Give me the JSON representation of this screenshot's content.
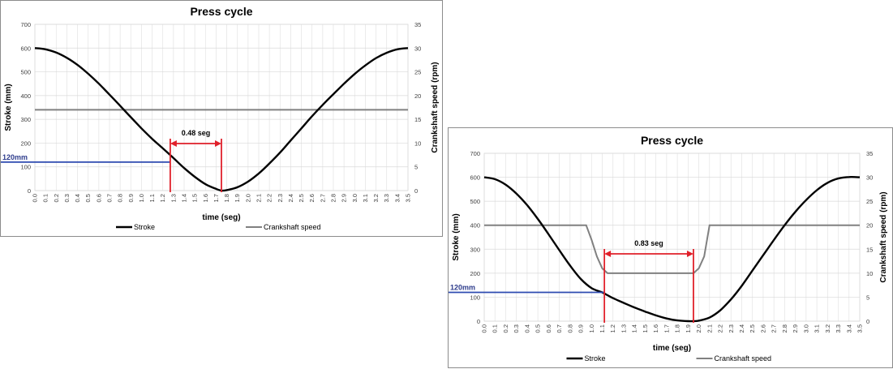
{
  "chart_data": [
    {
      "type": "line",
      "title": "Press cycle",
      "xlabel": "time (seg)",
      "ylabel": "Stroke  (mm)",
      "y2label": "Crankshaft speed (rpm)",
      "xlim": [
        0,
        3.5
      ],
      "ylim": [
        0,
        700
      ],
      "y2lim": [
        0,
        35
      ],
      "x_ticks": [
        "0.0",
        "0.1",
        "0.2",
        "0.3",
        "0.4",
        "0.5",
        "0.6",
        "0.7",
        "0.8",
        "0.9",
        "1.0",
        "1.1",
        "1.2",
        "1.3",
        "1.4",
        "1.5",
        "1.6",
        "1.7",
        "1.8",
        "1.9",
        "2.0",
        "2.1",
        "2.2",
        "2.3",
        "2.4",
        "2.5",
        "2.6",
        "2.7",
        "2.8",
        "2.9",
        "3.0",
        "3.1",
        "3.2",
        "3.3",
        "3.4",
        "3.5"
      ],
      "y_ticks": [
        "0",
        "100",
        "200",
        "300",
        "400",
        "500",
        "600",
        "700"
      ],
      "y2_ticks": [
        "0",
        "5",
        "10",
        "15",
        "20",
        "25",
        "30",
        "35"
      ],
      "grid": true,
      "legend_position": "bottom",
      "series": [
        {
          "name": "Stroke",
          "axis": "left",
          "color": "#000000",
          "x": [
            0,
            0.1,
            0.2,
            0.3,
            0.4,
            0.5,
            0.6,
            0.7,
            0.8,
            0.9,
            1.0,
            1.1,
            1.2,
            1.3,
            1.4,
            1.5,
            1.6,
            1.7,
            1.75,
            1.8,
            1.9,
            2.0,
            2.1,
            2.2,
            2.3,
            2.4,
            2.5,
            2.6,
            2.7,
            2.8,
            2.9,
            3.0,
            3.1,
            3.2,
            3.3,
            3.4,
            3.5
          ],
          "values": [
            600,
            595,
            581,
            559,
            529,
            492,
            450,
            404,
            357,
            309,
            262,
            218,
            178,
            137,
            95,
            58,
            27,
            7,
            0,
            2,
            14,
            38,
            72,
            114,
            160,
            211,
            262,
            313,
            361,
            406,
            450,
            491,
            527,
            558,
            580,
            595,
            600
          ]
        },
        {
          "name": "Crankshaft speed",
          "axis": "right",
          "color": "#808080",
          "x": [
            0,
            3.5
          ],
          "values": [
            17,
            17
          ]
        }
      ],
      "annotations": [
        {
          "text": "0.48 seg",
          "color": "#000000",
          "x1": 1.27,
          "x2": 1.75
        },
        {
          "text": "120mm",
          "color": "#2e3c8c",
          "x": 1.27,
          "y": 120
        }
      ]
    },
    {
      "type": "line",
      "title": "Press cycle",
      "xlabel": "time (seg)",
      "ylabel": "Stroke  (mm)",
      "y2label": "Crankshaft speed (rpm)",
      "xlim": [
        0,
        3.5
      ],
      "ylim": [
        0,
        700
      ],
      "y2lim": [
        0,
        35
      ],
      "x_ticks": [
        "0.0",
        "0.1",
        "0.2",
        "0.3",
        "0.4",
        "0.5",
        "0.6",
        "0.7",
        "0.8",
        "0.9",
        "1.0",
        "1.1",
        "1.2",
        "1.3",
        "1.4",
        "1.5",
        "1.6",
        "1.7",
        "1.8",
        "1.9",
        "2.0",
        "2.1",
        "2.2",
        "2.3",
        "2.4",
        "2.5",
        "2.6",
        "2.7",
        "2.8",
        "2.9",
        "3.0",
        "3.1",
        "3.2",
        "3.3",
        "3.4",
        "3.5"
      ],
      "y_ticks": [
        "0",
        "100",
        "200",
        "300",
        "400",
        "500",
        "600",
        "700"
      ],
      "y2_ticks": [
        "0",
        "5",
        "10",
        "15",
        "20",
        "25",
        "30",
        "35"
      ],
      "grid": true,
      "legend_position": "bottom",
      "series": [
        {
          "name": "Stroke",
          "axis": "left",
          "color": "#000000",
          "x": [
            0,
            0.1,
            0.2,
            0.3,
            0.4,
            0.5,
            0.6,
            0.7,
            0.8,
            0.9,
            1.0,
            1.1,
            1.15,
            1.2,
            1.3,
            1.4,
            1.5,
            1.6,
            1.7,
            1.8,
            1.9,
            1.95,
            2.0,
            2.1,
            2.2,
            2.3,
            2.4,
            2.5,
            2.6,
            2.7,
            2.8,
            2.9,
            3.0,
            3.1,
            3.2,
            3.3,
            3.4,
            3.5
          ],
          "values": [
            600,
            592,
            569,
            532,
            484,
            426,
            362,
            296,
            232,
            176,
            138,
            120,
            108,
            96,
            76,
            57,
            40,
            24,
            11,
            3,
            0,
            0,
            2,
            15,
            45,
            91,
            147,
            211,
            275,
            339,
            400,
            456,
            505,
            546,
            577,
            595,
            601,
            600
          ]
        },
        {
          "name": "Crankshaft speed",
          "axis": "right",
          "color": "#808080",
          "x": [
            0,
            0.95,
            1.0,
            1.05,
            1.1,
            1.15,
            1.95,
            2.0,
            2.05,
            2.1,
            3.5
          ],
          "values": [
            20,
            20,
            17,
            13.5,
            11,
            10,
            10,
            11,
            13.5,
            20,
            20
          ]
        }
      ],
      "annotations": [
        {
          "text": "0.83 seg",
          "color": "#000000",
          "x1": 1.12,
          "x2": 1.95
        },
        {
          "text": "120mm",
          "color": "#2e3c8c",
          "x": 1.12,
          "y": 120
        }
      ]
    }
  ]
}
